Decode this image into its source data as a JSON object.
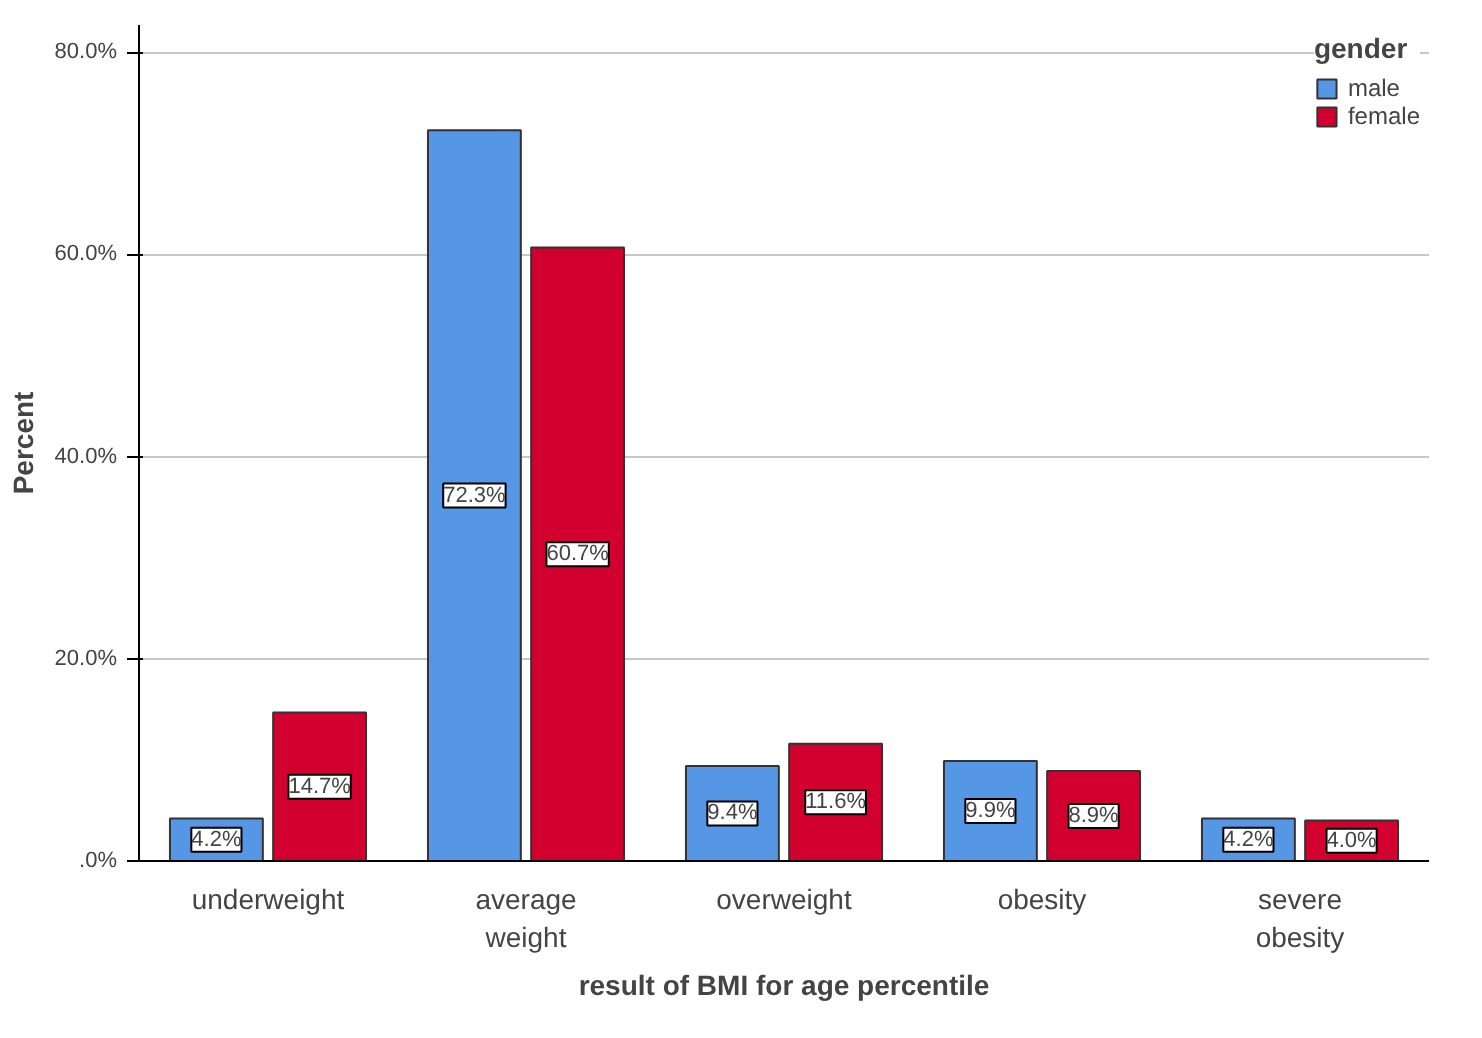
{
  "chart_data": {
    "type": "bar",
    "xlabel": "result of BMI for age percentile",
    "ylabel": "Percent",
    "legend_title": "gender",
    "categories": [
      "underweight",
      "average\nweight",
      "overweight",
      "obesity",
      "severe\nobesity"
    ],
    "series": [
      {
        "name": "male",
        "color": "#5596e5",
        "values": [
          4.2,
          72.3,
          9.4,
          9.9,
          4.2
        ],
        "value_labels": [
          "4.2%",
          "72.3%",
          "9.4%",
          "9.9%",
          "4.2%"
        ]
      },
      {
        "name": "female",
        "color": "#d2002e",
        "values": [
          14.7,
          60.7,
          11.6,
          8.9,
          4.0
        ],
        "value_labels": [
          "14.7%",
          "60.7%",
          "11.6%",
          "8.9%",
          "4.0%"
        ]
      }
    ],
    "ylim": [
      0,
      82.7
    ],
    "yticks": [
      {
        "value": 0,
        "label": ".0%"
      },
      {
        "value": 20,
        "label": "20.0%"
      },
      {
        "value": 40,
        "label": "40.0%"
      },
      {
        "value": 60,
        "label": "60.0%"
      },
      {
        "value": 80,
        "label": "80.0%"
      }
    ],
    "grid": "y",
    "legend": "top right"
  }
}
